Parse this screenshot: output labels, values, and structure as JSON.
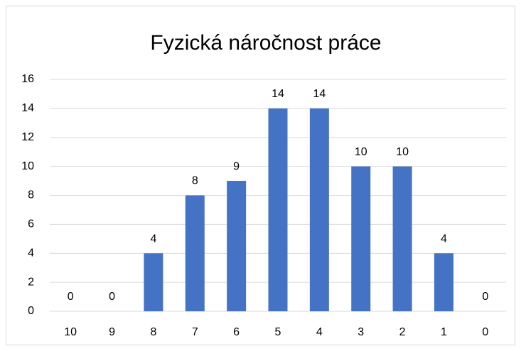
{
  "chart_data": {
    "type": "bar",
    "title": "Fyzická náročnost práce",
    "categories": [
      "10",
      "9",
      "8",
      "7",
      "6",
      "5",
      "4",
      "3",
      "2",
      "1",
      "0"
    ],
    "values": [
      0,
      0,
      4,
      8,
      9,
      14,
      14,
      10,
      10,
      4,
      0
    ],
    "color": "#4472c4",
    "ylim": [
      0,
      16
    ],
    "yticks": [
      0,
      2,
      4,
      6,
      8,
      10,
      12,
      14,
      16
    ],
    "grid": true,
    "data_labels": true
  }
}
